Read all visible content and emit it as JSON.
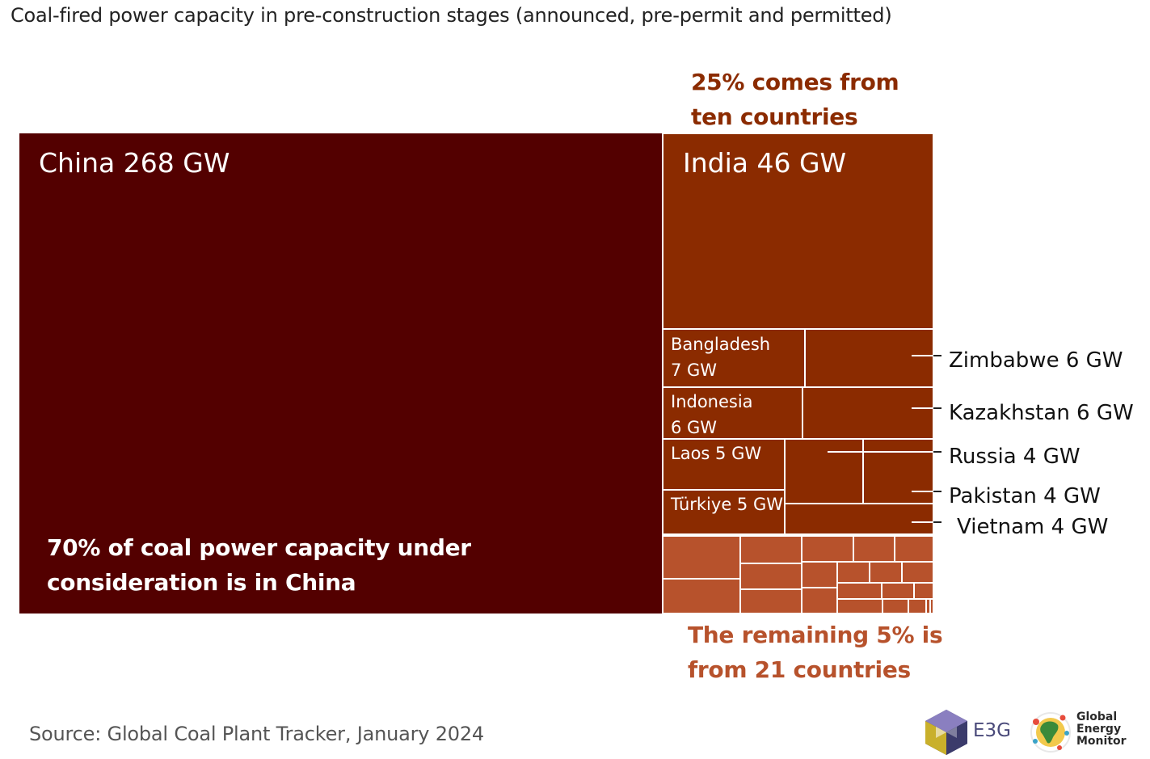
{
  "title": "Coal-fired power capacity in pre-construction stages (announced, pre-permit and permitted)",
  "annotations": {
    "top": [
      "25% comes from",
      "ten countries"
    ],
    "bottom": [
      "The remaining 5% is",
      "from 21 countries"
    ],
    "china": [
      "70% of coal power capacity under",
      "consideration is in China"
    ]
  },
  "source": "Source: Global Coal Plant Tracker, January 2024",
  "logos": {
    "e3g": "E3G",
    "gem": [
      "Global",
      "Energy",
      "Monitor"
    ]
  },
  "colors": {
    "china": "#530000",
    "top_ten": "#8B2B00",
    "remaining": "#B7522C",
    "annotation_top": "#8B2B00",
    "annotation_bottom": "#B7522C"
  },
  "chart_data": {
    "type": "treemap",
    "unit": "GW",
    "items": [
      {
        "name": "China",
        "value": 268,
        "label": "China 268 GW",
        "group": "china"
      },
      {
        "name": "India",
        "value": 46,
        "label": "India 46 GW",
        "group": "top_ten"
      },
      {
        "name": "Bangladesh",
        "value": 7,
        "label": [
          "Bangladesh",
          "7 GW"
        ],
        "group": "top_ten"
      },
      {
        "name": "Zimbabwe",
        "value": 6,
        "label": "Zimbabwe 6 GW",
        "group": "top_ten"
      },
      {
        "name": "Indonesia",
        "value": 6,
        "label": [
          "Indonesia",
          "6 GW"
        ],
        "group": "top_ten"
      },
      {
        "name": "Kazakhstan",
        "value": 6,
        "label": "Kazakhstan 6 GW",
        "group": "top_ten"
      },
      {
        "name": "Laos",
        "value": 5,
        "label": "Laos 5 GW",
        "group": "top_ten"
      },
      {
        "name": "Türkiye",
        "value": 5,
        "label": "Türkiye 5 GW",
        "group": "top_ten"
      },
      {
        "name": "Russia",
        "value": 4,
        "label": "Russia 4 GW",
        "group": "top_ten"
      },
      {
        "name": "Pakistan",
        "value": 4,
        "label": "Pakistan 4 GW",
        "group": "top_ten"
      },
      {
        "name": "Vietnam",
        "value": 4,
        "label": "Vietnam 4 GW",
        "group": "top_ten"
      }
    ],
    "remaining_countries_count": 21
  }
}
